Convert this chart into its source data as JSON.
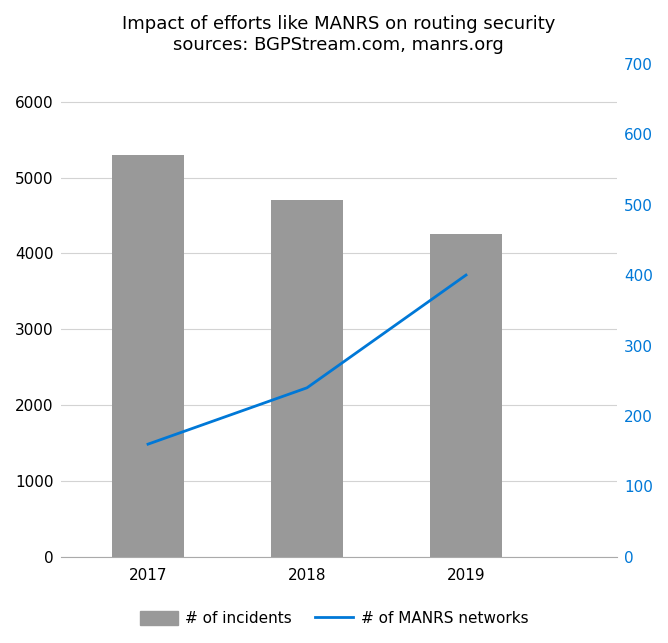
{
  "title_line1": "Impact of efforts like MANRS on routing security",
  "title_line2": "sources: BGPStream.com, manrs.org",
  "years": [
    2017,
    2018,
    2019
  ],
  "incidents": [
    5300,
    4700,
    4250
  ],
  "manrs_networks": [
    160,
    240,
    400
  ],
  "bar_color": "#999999",
  "line_color": "#0078D7",
  "left_ylim": [
    0,
    6500
  ],
  "right_ylim": [
    0,
    700
  ],
  "left_yticks": [
    0,
    1000,
    2000,
    3000,
    4000,
    5000,
    6000
  ],
  "right_yticks": [
    0,
    100,
    200,
    300,
    400,
    500,
    600,
    700
  ],
  "background_color": "#ffffff",
  "bar_width": 0.45,
  "legend_bar_label": "# of incidents",
  "legend_line_label": "# of MANRS networks",
  "title_fontsize": 13,
  "axis_tick_fontsize": 11,
  "legend_fontsize": 11,
  "xlim": [
    2016.45,
    2019.95
  ]
}
